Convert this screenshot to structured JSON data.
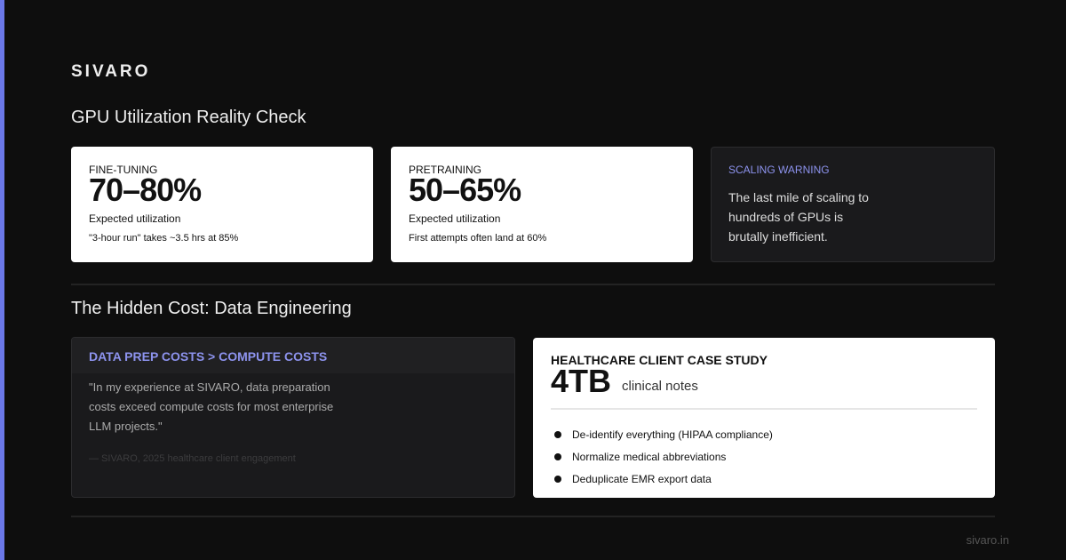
{
  "brand": "SIVARO",
  "section1": {
    "title": "GPU Utilization Reality Check",
    "cards": [
      {
        "label": "FINE-TUNING",
        "value": "70–80%",
        "caption": "Expected utilization",
        "note": "\"3-hour run\" takes ~3.5 hrs at 85%"
      },
      {
        "label": "PRETRAINING",
        "value": "50–65%",
        "caption": "Expected utilization",
        "note": "First attempts often land at 60%"
      }
    ],
    "warning": {
      "label": "SCALING WARNING",
      "lines": [
        "The last mile of scaling to",
        "hundreds of GPUs is",
        "brutally inefficient."
      ]
    }
  },
  "section2": {
    "title": "The Hidden Cost: Data Engineering",
    "quote_card": {
      "header": "DATA PREP COSTS > COMPUTE COSTS",
      "lines": [
        "\"In my experience at SIVARO, data preparation",
        "costs exceed compute costs for most enterprise",
        "LLM projects.\""
      ],
      "source": "— SIVARO, 2025 healthcare client engagement"
    },
    "case_card": {
      "label": "HEALTHCARE CLIENT CASE STUDY",
      "value": "4TB",
      "unit": "clinical notes",
      "items": [
        "De-identify everything (HIPAA compliance)",
        "Normalize medical abbreviations",
        "Deduplicate EMR export data"
      ]
    }
  },
  "footer": "sivaro.in"
}
